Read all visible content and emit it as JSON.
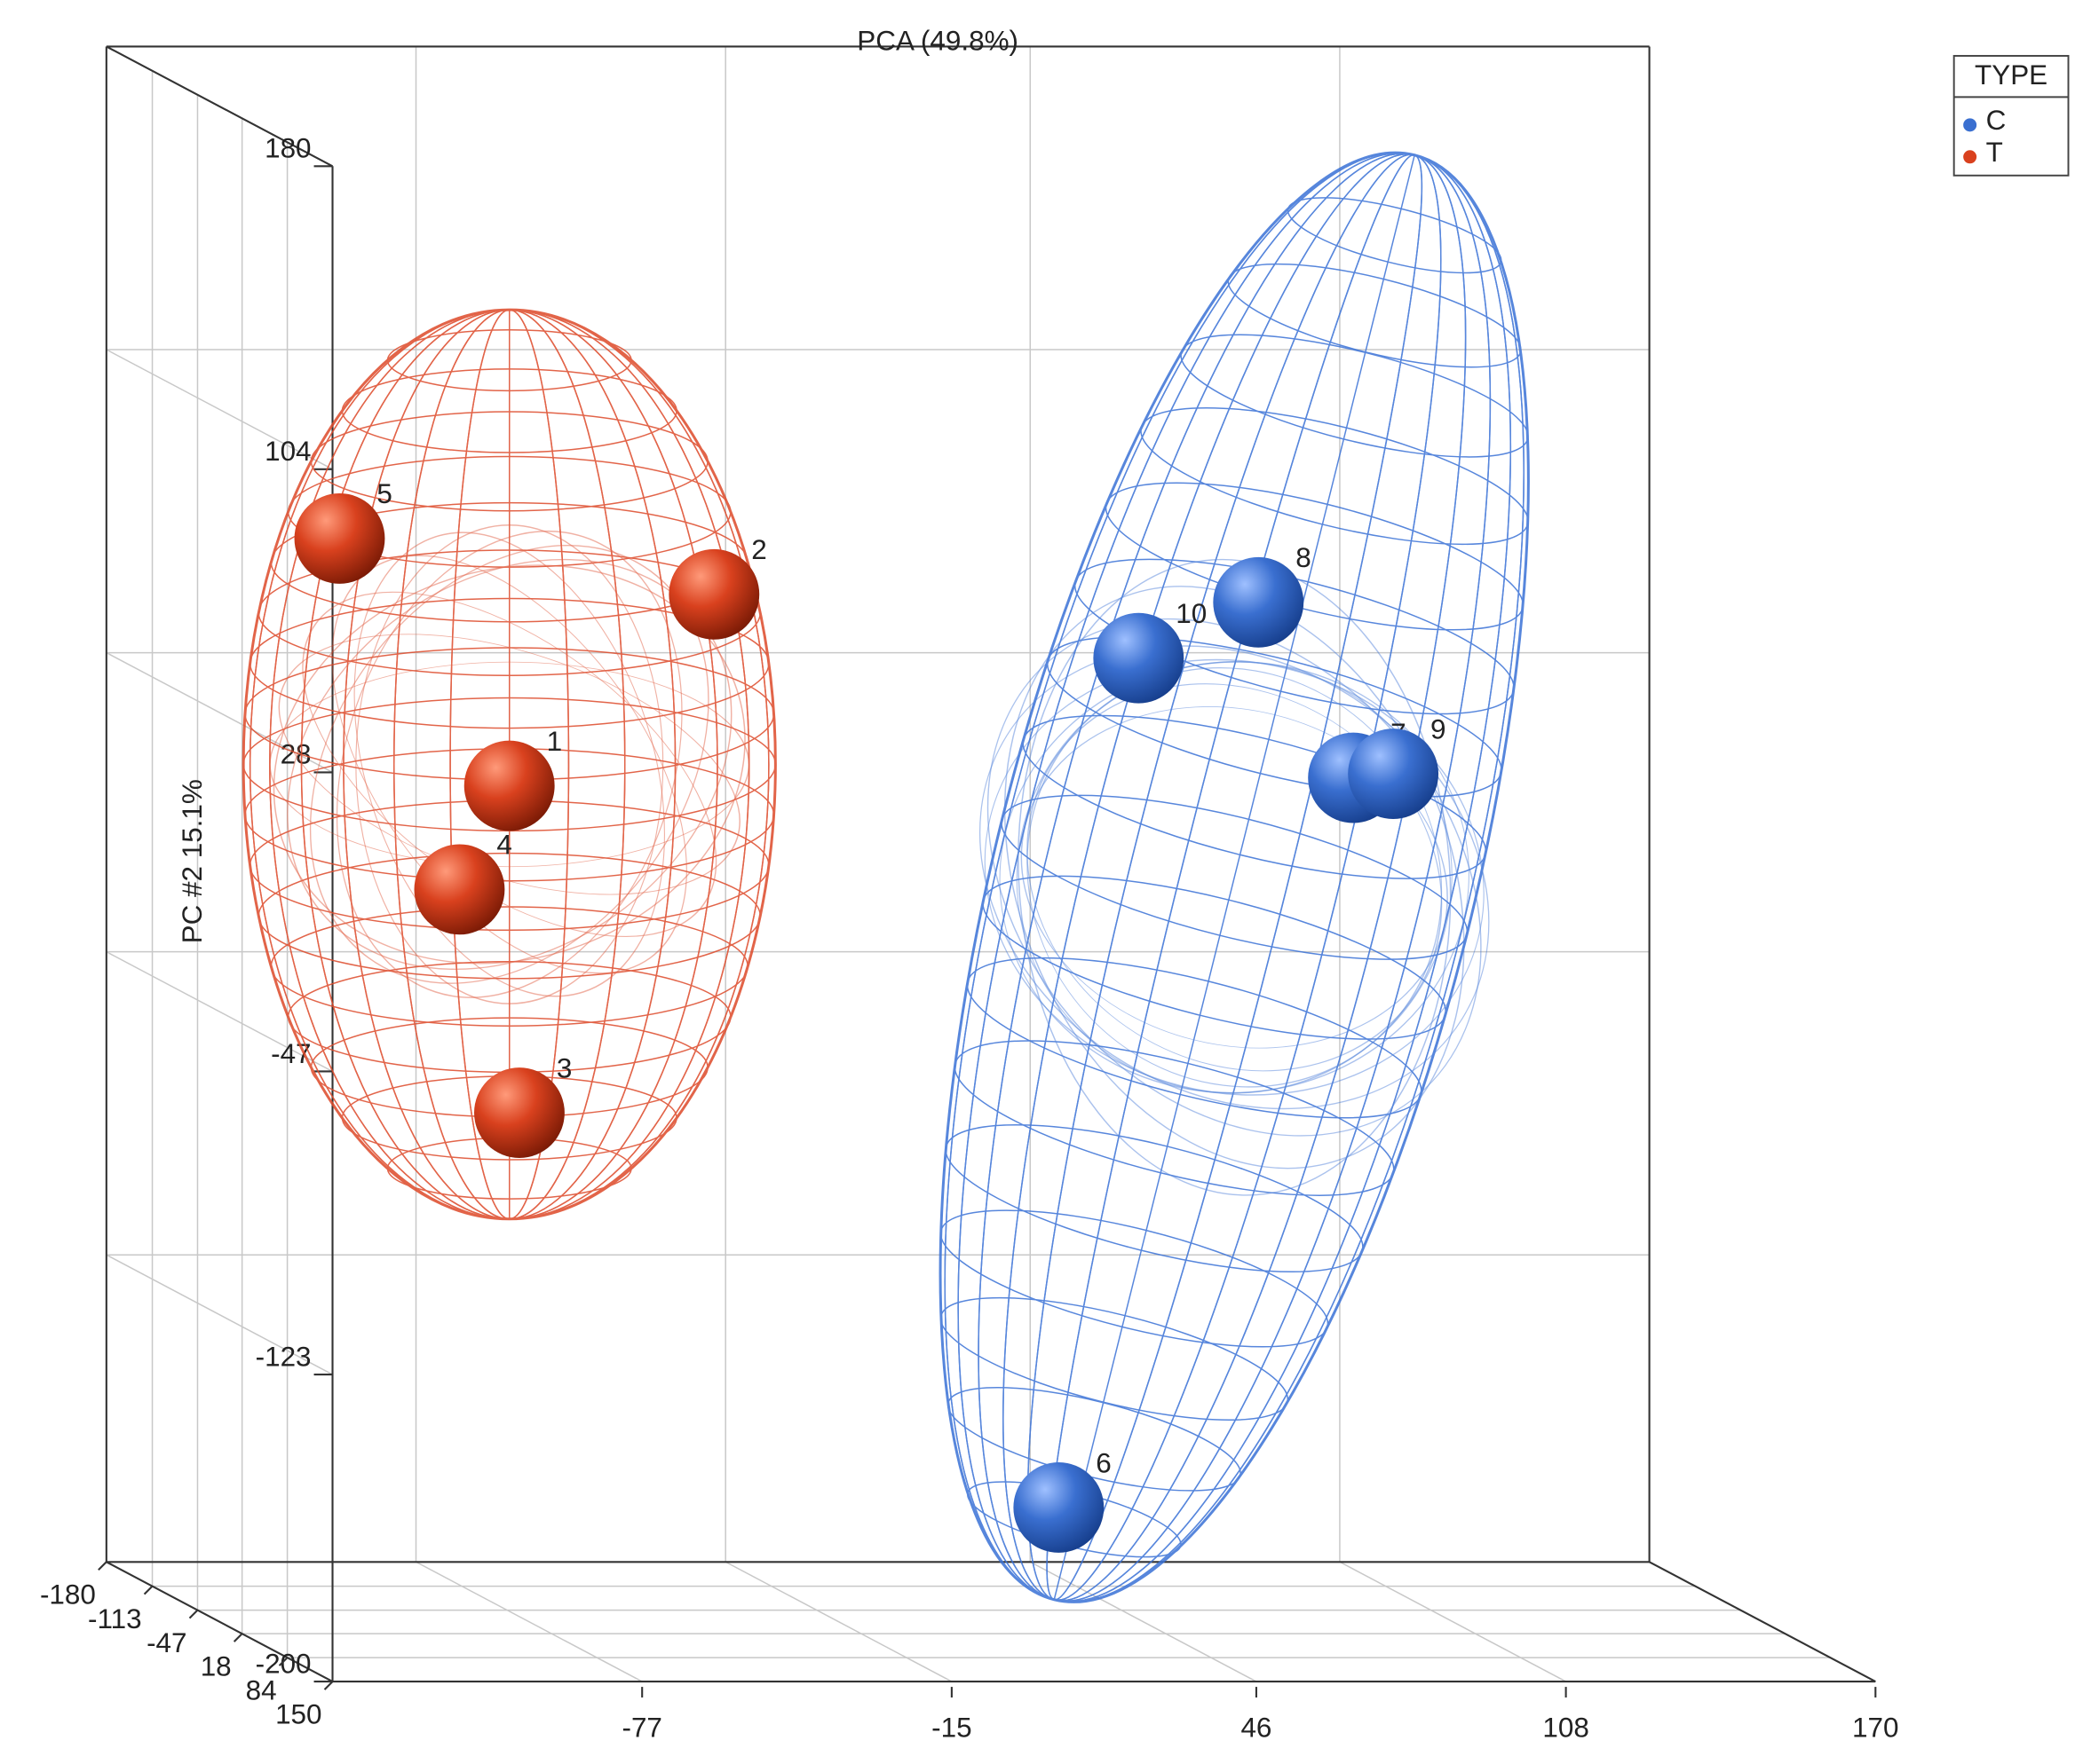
{
  "chart_data": {
    "type": "scatter3d",
    "title": "PCA (49.8%)",
    "ylabel": "PC #2 15.1%",
    "xlim": [
      -139,
      170
    ],
    "xticks": [
      -77,
      -15,
      46,
      108,
      170
    ],
    "ylim": [
      -200,
      180
    ],
    "yticks": [
      -200,
      -123,
      -47,
      28,
      104,
      180
    ],
    "zlim": [
      -180,
      150
    ],
    "zticks": [
      -180,
      -113,
      -47,
      18,
      84,
      150
    ],
    "grid": true,
    "legend_title": "TYPE",
    "legend": "top-right",
    "series": [
      {
        "name": "C",
        "color": "#3a6fd0",
        "labels": [
          "6",
          "7",
          "8",
          "9",
          "10"
        ],
        "x": [
          27,
          86,
          67,
          94,
          43
        ],
        "y": [
          -170,
          13,
          57,
          14,
          43
        ],
        "z": [
          0,
          0,
          0,
          0,
          0
        ]
      },
      {
        "name": "T",
        "color": "#d9411e",
        "labels": [
          "1",
          "2",
          "3",
          "4",
          "5"
        ],
        "x": [
          -83,
          -42,
          -81,
          -93,
          -117
        ],
        "y": [
          11,
          59,
          -71,
          -15,
          73
        ],
        "z": [
          0,
          0,
          0,
          0,
          0
        ]
      }
    ]
  }
}
